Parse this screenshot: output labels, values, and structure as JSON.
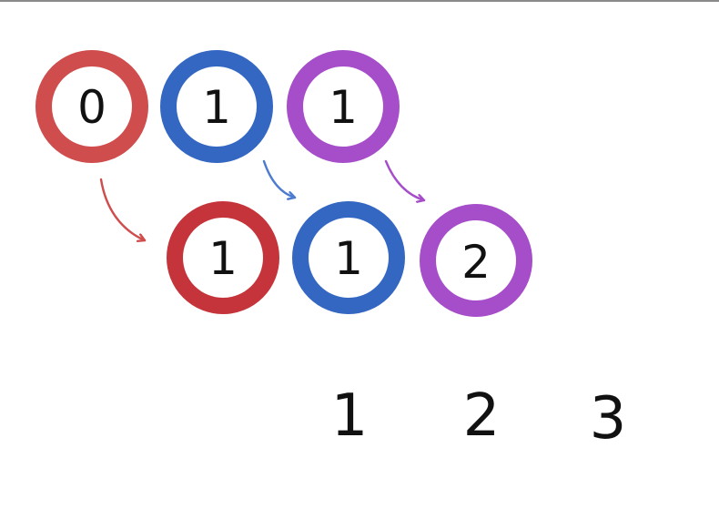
{
  "colors": {
    "red_light": "#cf4d4d",
    "red": "#c4343a",
    "blue": "#3467c2",
    "blue_light": "#4d7bcf",
    "purple": "#a64ec9",
    "ink": "#111111",
    "rule": "#8a8a8a"
  },
  "diagram": {
    "top_row": [
      {
        "label": "0",
        "color": "#cf4d4d"
      },
      {
        "label": "1",
        "color": "#3467c2"
      },
      {
        "label": "1",
        "color": "#a64ec9"
      }
    ],
    "bottom_row": [
      {
        "label": "1",
        "color": "#c4343a"
      },
      {
        "label": "1",
        "color": "#3467c2"
      },
      {
        "label": "2",
        "color": "#a64ec9"
      }
    ],
    "arrows": [
      {
        "from": "top_row.0",
        "to": "bottom_row.0",
        "color": "#cf4d4d"
      },
      {
        "from": "top_row.1",
        "to": "bottom_row.1",
        "color": "#4d7bcf"
      },
      {
        "from": "top_row.2",
        "to": "bottom_row.2",
        "color": "#a64ec9"
      }
    ],
    "sequence_labels": [
      "1",
      "2",
      "3"
    ]
  }
}
